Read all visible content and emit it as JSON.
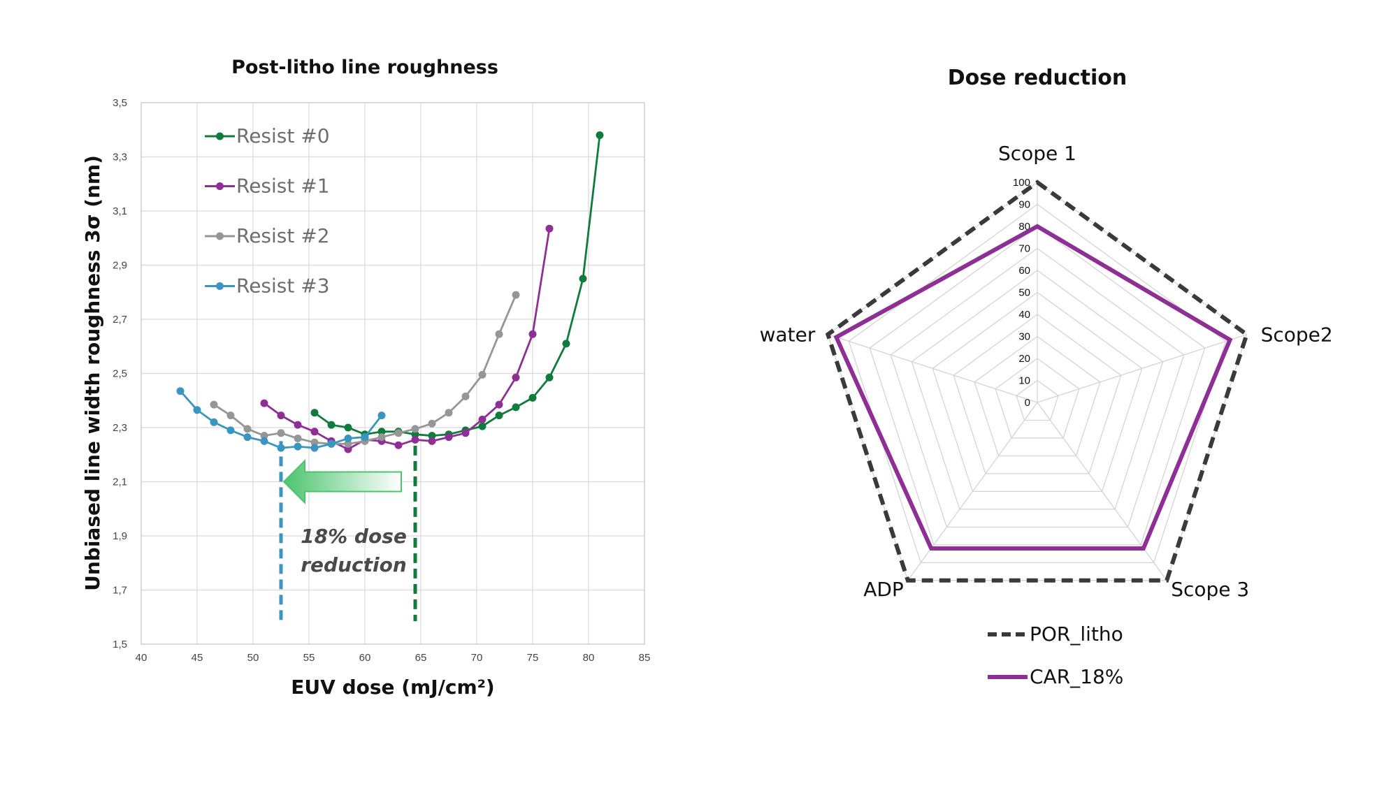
{
  "chart_data": [
    {
      "type": "line",
      "title": "Post-litho line roughness",
      "xlabel": "EUV dose (mJ/cm²)",
      "ylabel": "Unbiased line width roughness 3σ (nm)",
      "xlim": [
        40,
        85
      ],
      "ylim": [
        1.5,
        3.5
      ],
      "x_ticks": [
        "40",
        "45",
        "50",
        "55",
        "60",
        "65",
        "70",
        "75",
        "80",
        "85"
      ],
      "y_ticks": [
        "1,5",
        "1,7",
        "1,9",
        "2,1",
        "2,3",
        "2,5",
        "2,7",
        "2,9",
        "3,1",
        "3,3",
        "3,5"
      ],
      "grid": true,
      "legend_position": "top-left",
      "series": [
        {
          "name": "Resist #0",
          "color": "#0f7b3c",
          "points": [
            [
              55.5,
              2.355
            ],
            [
              57,
              2.31
            ],
            [
              58.5,
              2.3
            ],
            [
              60,
              2.275
            ],
            [
              61.5,
              2.285
            ],
            [
              63,
              2.285
            ],
            [
              64.5,
              2.275
            ],
            [
              66,
              2.27
            ],
            [
              67.5,
              2.275
            ],
            [
              69,
              2.29
            ],
            [
              70.5,
              2.305
            ],
            [
              72,
              2.345
            ],
            [
              73.5,
              2.375
            ],
            [
              75,
              2.41
            ],
            [
              76.5,
              2.485
            ],
            [
              78,
              2.61
            ],
            [
              79.5,
              2.85
            ],
            [
              81,
              3.38
            ]
          ]
        },
        {
          "name": "Resist #1",
          "color": "#8e2f96",
          "points": [
            [
              51,
              2.39
            ],
            [
              52.5,
              2.345
            ],
            [
              54,
              2.31
            ],
            [
              55.5,
              2.285
            ],
            [
              57,
              2.25
            ],
            [
              58.5,
              2.22
            ],
            [
              60,
              2.255
            ],
            [
              61.5,
              2.25
            ],
            [
              63,
              2.235
            ],
            [
              64.5,
              2.255
            ],
            [
              66,
              2.25
            ],
            [
              67.5,
              2.265
            ],
            [
              69,
              2.28
            ],
            [
              70.5,
              2.33
            ],
            [
              72,
              2.385
            ],
            [
              73.5,
              2.485
            ],
            [
              75,
              2.645
            ],
            [
              76.5,
              3.035
            ]
          ]
        },
        {
          "name": "Resist #2",
          "color": "#969696",
          "points": [
            [
              46.5,
              2.385
            ],
            [
              48,
              2.345
            ],
            [
              49.5,
              2.295
            ],
            [
              51,
              2.27
            ],
            [
              52.5,
              2.28
            ],
            [
              54,
              2.26
            ],
            [
              55.5,
              2.245
            ],
            [
              57,
              2.24
            ],
            [
              58.5,
              2.24
            ],
            [
              60,
              2.25
            ],
            [
              61.5,
              2.265
            ],
            [
              63,
              2.28
            ],
            [
              64.5,
              2.295
            ],
            [
              66,
              2.315
            ],
            [
              67.5,
              2.355
            ],
            [
              69,
              2.415
            ],
            [
              70.5,
              2.495
            ],
            [
              72,
              2.645
            ],
            [
              73.5,
              2.79
            ]
          ]
        },
        {
          "name": "Resist #3",
          "color": "#3a96c0",
          "points": [
            [
              43.5,
              2.435
            ],
            [
              45,
              2.365
            ],
            [
              46.5,
              2.32
            ],
            [
              48,
              2.29
            ],
            [
              49.5,
              2.265
            ],
            [
              51,
              2.25
            ],
            [
              52.5,
              2.225
            ],
            [
              54,
              2.23
            ],
            [
              55.5,
              2.225
            ],
            [
              57,
              2.24
            ],
            [
              58.5,
              2.26
            ],
            [
              60,
              2.265
            ],
            [
              61.5,
              2.345
            ]
          ]
        }
      ],
      "annotation": {
        "line1": "18% dose",
        "line2": "reduction",
        "from_dose": 64.5,
        "to_dose": 52.5,
        "from_color": "#0f7b3c",
        "to_color": "#3a96c0",
        "arrow_color": "#4cc46e"
      }
    },
    {
      "type": "radar",
      "title": "Dose reduction",
      "axes": [
        "Scope 1",
        "Scope2",
        "Scope 3",
        "ADP",
        "water"
      ],
      "rmax": 100,
      "r_ticks": [
        "0",
        "10",
        "20",
        "30",
        "40",
        "50",
        "60",
        "70",
        "80",
        "90",
        "100"
      ],
      "legend_position": "bottom",
      "series": [
        {
          "name": "POR_litho",
          "color": "#3a3a3a",
          "style": "dashed",
          "values": [
            100,
            100,
            100,
            100,
            100
          ]
        },
        {
          "name": "CAR_18%",
          "color": "#8e2f96",
          "style": "solid",
          "values": [
            80,
            92,
            82,
            82,
            96
          ]
        }
      ]
    }
  ]
}
